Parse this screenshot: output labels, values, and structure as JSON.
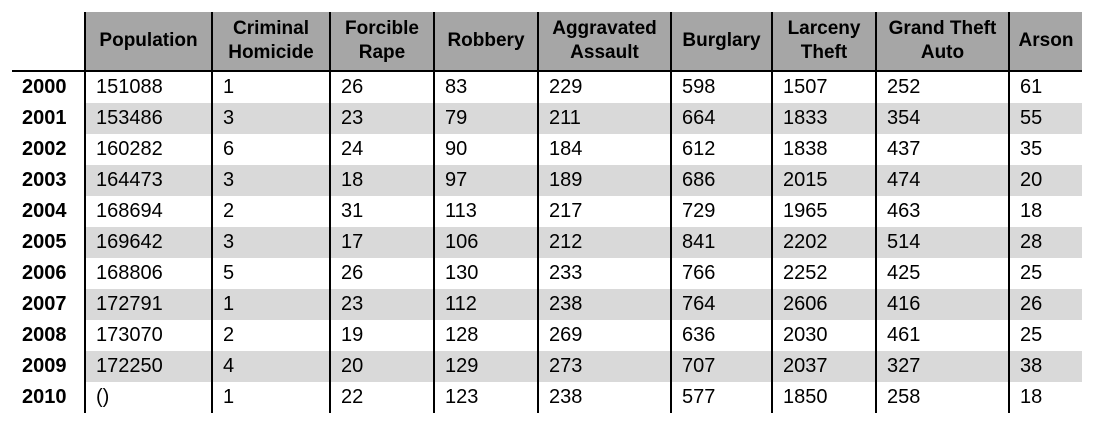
{
  "table": {
    "headers": [
      "Population",
      "Criminal Homicide",
      "Forcible Rape",
      "Robbery",
      "Aggravated Assault",
      "Burglary",
      "Larceny Theft",
      "Grand Theft Auto",
      "Arson"
    ],
    "rows": [
      {
        "year": "2000",
        "cells": [
          "151088",
          "1",
          "26",
          "83",
          "229",
          "598",
          "1507",
          "252",
          "61"
        ]
      },
      {
        "year": "2001",
        "cells": [
          "153486",
          "3",
          "23",
          "79",
          "211",
          "664",
          "1833",
          "354",
          "55"
        ]
      },
      {
        "year": "2002",
        "cells": [
          "160282",
          "6",
          "24",
          "90",
          "184",
          "612",
          "1838",
          "437",
          "35"
        ]
      },
      {
        "year": "2003",
        "cells": [
          "164473",
          "3",
          "18",
          "97",
          "189",
          "686",
          "2015",
          "474",
          "20"
        ]
      },
      {
        "year": "2004",
        "cells": [
          "168694",
          "2",
          "31",
          "113",
          "217",
          "729",
          "1965",
          "463",
          "18"
        ]
      },
      {
        "year": "2005",
        "cells": [
          "169642",
          "3",
          "17",
          "106",
          "212",
          "841",
          "2202",
          "514",
          "28"
        ]
      },
      {
        "year": "2006",
        "cells": [
          "168806",
          "5",
          "26",
          "130",
          "233",
          "766",
          "2252",
          "425",
          "25"
        ]
      },
      {
        "year": "2007",
        "cells": [
          "172791",
          "1",
          "23",
          "112",
          "238",
          "764",
          "2606",
          "416",
          "26"
        ]
      },
      {
        "year": "2008",
        "cells": [
          "173070",
          "2",
          "19",
          "128",
          "269",
          "636",
          "2030",
          "461",
          "25"
        ]
      },
      {
        "year": "2009",
        "cells": [
          "172250",
          "4",
          "20",
          "129",
          "273",
          "707",
          "2037",
          "327",
          "38"
        ]
      },
      {
        "year": "2010",
        "cells": [
          "()",
          "1",
          "22",
          "123",
          "238",
          "577",
          "1850",
          "258",
          "18"
        ]
      }
    ]
  },
  "colors": {
    "header_bg": "#a6a6a6",
    "row_shade": "#d9d9d9",
    "row_plain": "#ffffff"
  }
}
